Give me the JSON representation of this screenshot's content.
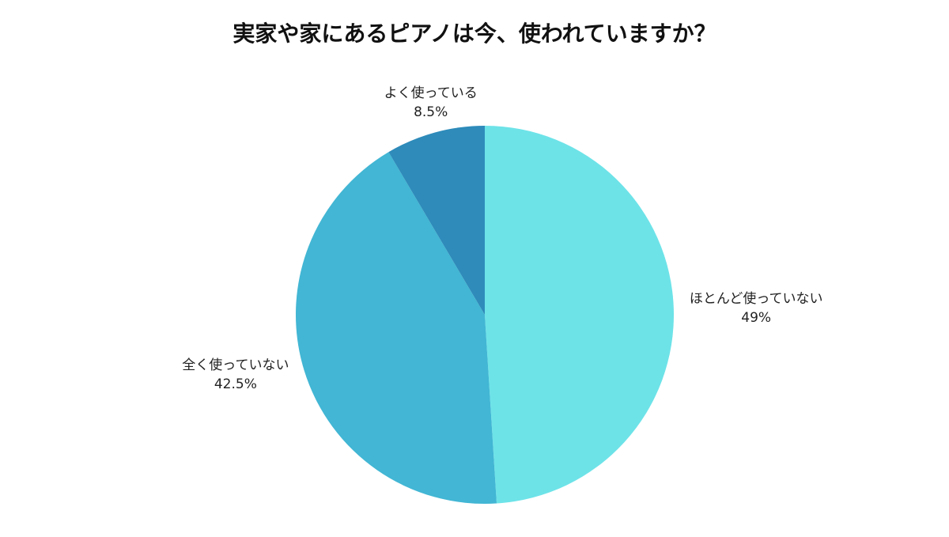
{
  "chart_data": {
    "type": "pie",
    "title": "実家や家にあるピアノは今、使われていますか？",
    "categories": [
      "ほとんど使っていない",
      "全く使っていない",
      "よく使っている"
    ],
    "values": [
      49,
      42.5,
      8.5
    ],
    "value_labels": [
      "49%",
      "42.5%",
      "8.5%"
    ],
    "colors": [
      "#6de3e8",
      "#42b6d4",
      "#2e8bba"
    ]
  }
}
